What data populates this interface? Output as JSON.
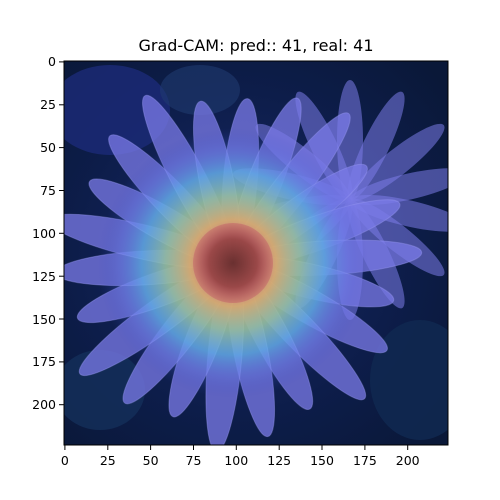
{
  "figure": {
    "title": "Grad-CAM: pred:: 41, real: 41",
    "subject": "gerbera daisy flower with grad-cam heatmap overlay",
    "x_ticks": [
      "0",
      "25",
      "50",
      "75",
      "100",
      "125",
      "150",
      "175",
      "200"
    ],
    "y_ticks": [
      "0",
      "25",
      "50",
      "75",
      "100",
      "125",
      "150",
      "175",
      "200"
    ],
    "colors": {
      "background_dark": "#0a1a3a",
      "petal": "#7b7be8",
      "heat_center": "#c07a7a",
      "heat_ring": "#e8d060"
    }
  }
}
